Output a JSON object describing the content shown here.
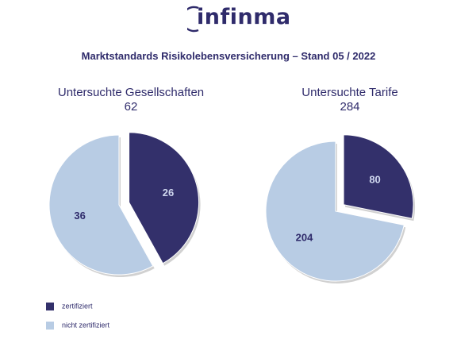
{
  "brand": {
    "logo_text": "infinma"
  },
  "header": {
    "title": "Marktstandards Risikolebensversicherung – Stand 05 / 2022"
  },
  "colors": {
    "zertifiziert": "#33306b",
    "nicht_zertifiziert": "#b8cce4",
    "text": "#2f2b6b"
  },
  "chart_data": [
    {
      "type": "pie",
      "title": "Untersuchte Gesellschaften",
      "total": "62",
      "slices": [
        {
          "label": "zertifiziert",
          "value": 26
        },
        {
          "label": "nicht zertifiziert",
          "value": 36
        }
      ]
    },
    {
      "type": "pie",
      "title": "Untersuchte Tarife",
      "total": "284",
      "slices": [
        {
          "label": "zertifiziert",
          "value": 80
        },
        {
          "label": "nicht zertifiziert",
          "value": 204
        }
      ]
    }
  ],
  "legend": [
    {
      "label": "zertifiziert"
    },
    {
      "label": "nicht zertifiziert"
    }
  ]
}
